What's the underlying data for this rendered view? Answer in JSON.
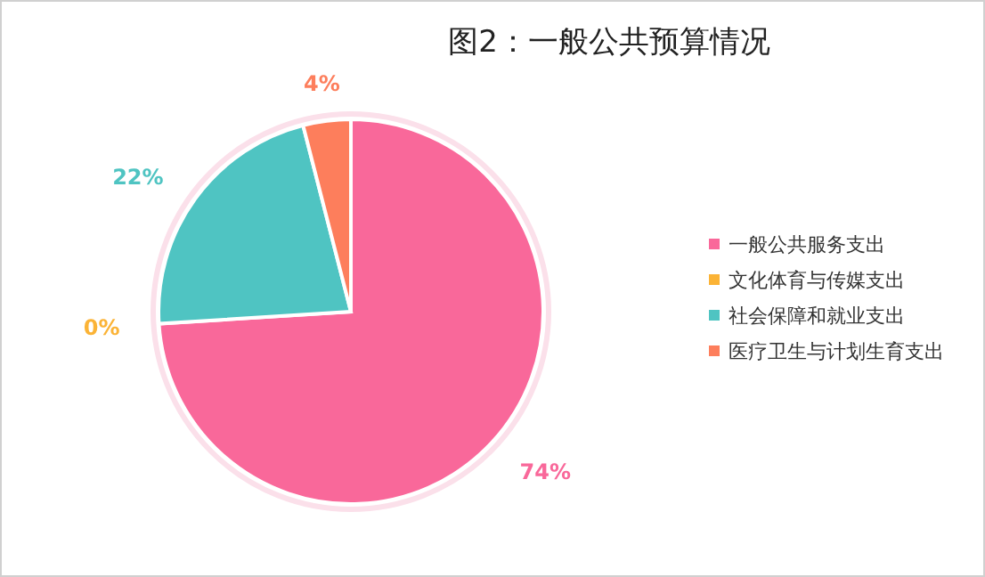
{
  "chart_data": {
    "type": "pie",
    "title": "图2：一般公共预算情况",
    "categories": [
      "一般公共服务支出",
      "文化体育与传媒支出",
      "社会保障和就业支出",
      "医疗卫生与计划生育支出"
    ],
    "values": [
      74,
      0,
      22,
      4
    ],
    "colors": [
      "#f9689a",
      "#fbb336",
      "#4fc4c2",
      "#fd7e5c"
    ],
    "value_labels": [
      "74%",
      "0%",
      "22%",
      "4%"
    ],
    "legend": "right"
  }
}
